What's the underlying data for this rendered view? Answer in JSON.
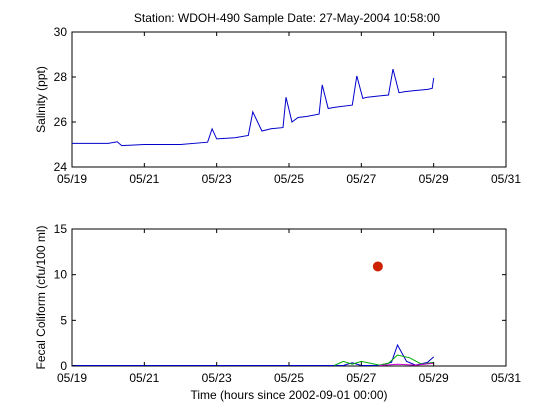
{
  "title": "Station: WDOH-490  Sample Date: 27-May-2004 10:58:00",
  "x_tick_labels": [
    "05/19",
    "05/21",
    "05/23",
    "05/25",
    "05/27",
    "05/29",
    "05/31"
  ],
  "chart_data": [
    {
      "type": "line",
      "ylabel": "Salinity (ppt)",
      "xlabel": "",
      "xlim": [
        "05/19",
        "05/31"
      ],
      "ylim": [
        24,
        30
      ],
      "y_ticks": [
        24,
        26,
        28,
        30
      ],
      "grid": false,
      "series": [
        {
          "color": "#0000cc",
          "x": [
            "05/19 00:00",
            "05/20 00:00",
            "05/20 06:00",
            "05/20 09:00",
            "05/21 00:00",
            "05/22 00:00",
            "05/22 18:00",
            "05/22 21:00",
            "05/23 00:00",
            "05/23 12:00",
            "05/23 21:00",
            "05/24 00:00",
            "05/24 06:00",
            "05/24 12:00",
            "05/24 20:00",
            "05/24 22:00",
            "05/25 02:00",
            "05/25 06:00",
            "05/25 12:00",
            "05/25 20:00",
            "05/25 22:00",
            "05/26 02:00",
            "05/26 06:00",
            "05/26 18:00",
            "05/26 21:00",
            "05/27 01:00",
            "05/27 04:00",
            "05/27 18:00",
            "05/27 21:00",
            "05/28 01:00",
            "05/28 05:00",
            "05/28 12:00",
            "05/28 20:00",
            "05/28 23:00",
            "05/29 00:00"
          ],
          "y": [
            25.05,
            25.05,
            25.12,
            24.95,
            25.0,
            25.0,
            25.1,
            25.7,
            25.25,
            25.3,
            25.4,
            26.45,
            25.6,
            25.7,
            25.75,
            27.1,
            26.0,
            26.2,
            26.25,
            26.35,
            27.65,
            26.6,
            26.65,
            26.75,
            28.05,
            27.05,
            27.1,
            27.2,
            28.35,
            27.3,
            27.35,
            27.4,
            27.45,
            27.5,
            27.95
          ]
        }
      ]
    },
    {
      "type": "line",
      "ylabel": "Fecal Coliform (cfu/100 ml)",
      "xlabel": "Time (hours since 2002-09-01 00:00)",
      "xlim": [
        "05/19",
        "05/31"
      ],
      "ylim": [
        0,
        15
      ],
      "y_ticks": [
        0,
        5,
        10,
        15
      ],
      "grid": false,
      "series": [
        {
          "color": "#0000cc",
          "x": [
            "05/19 00:00",
            "05/26 12:00",
            "05/26 18:00",
            "05/27 00:00",
            "05/27 12:00",
            "05/27 20:00",
            "05/28 00:00",
            "05/28 06:00",
            "05/28 12:00",
            "05/28 20:00",
            "05/29 00:00"
          ],
          "y": [
            0.05,
            0.05,
            0.35,
            0.05,
            0.05,
            0.4,
            2.3,
            0.5,
            0.1,
            0.4,
            1.0
          ]
        },
        {
          "color": "#00aa00",
          "x": [
            "05/26 06:00",
            "05/26 12:00",
            "05/26 18:00",
            "05/27 00:00",
            "05/27 12:00",
            "05/27 18:00",
            "05/28 00:00",
            "05/28 08:00",
            "05/28 16:00",
            "05/29 00:00"
          ],
          "y": [
            0.05,
            0.5,
            0.2,
            0.5,
            0.1,
            0.3,
            1.2,
            0.9,
            0.2,
            0.4
          ]
        },
        {
          "color": "#cc00cc",
          "x": [
            "05/27 12:00",
            "05/28 00:00",
            "05/28 12:00",
            "05/29 00:00"
          ],
          "y": [
            0.05,
            0.2,
            0.1,
            0.3
          ]
        }
      ],
      "points": [
        {
          "x": "05/27 10:58",
          "y": 10.9,
          "color": "#cc2200"
        }
      ]
    }
  ]
}
